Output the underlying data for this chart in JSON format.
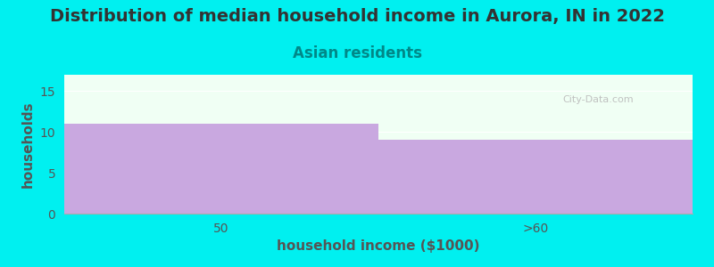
{
  "title": "Distribution of median household income in Aurora, IN in 2022",
  "subtitle": "Asian residents",
  "categories": [
    "50",
    ">60"
  ],
  "values": [
    11,
    9
  ],
  "bar_color": "#c9a8e0",
  "bar_edge_color": "none",
  "background_color": "#00f0f0",
  "plot_bg_color": "#f0fff4",
  "xlabel": "household income ($1000)",
  "ylabel": "households",
  "ylim": [
    0,
    17
  ],
  "yticks": [
    0,
    5,
    10,
    15
  ],
  "title_fontsize": 14,
  "subtitle_fontsize": 12,
  "title_color": "#333333",
  "subtitle_color": "#008888",
  "axis_label_fontsize": 11,
  "axis_label_color": "#555555",
  "tick_color": "#555555",
  "watermark": "City-Data.com",
  "watermark_color": "#bbbbbb"
}
